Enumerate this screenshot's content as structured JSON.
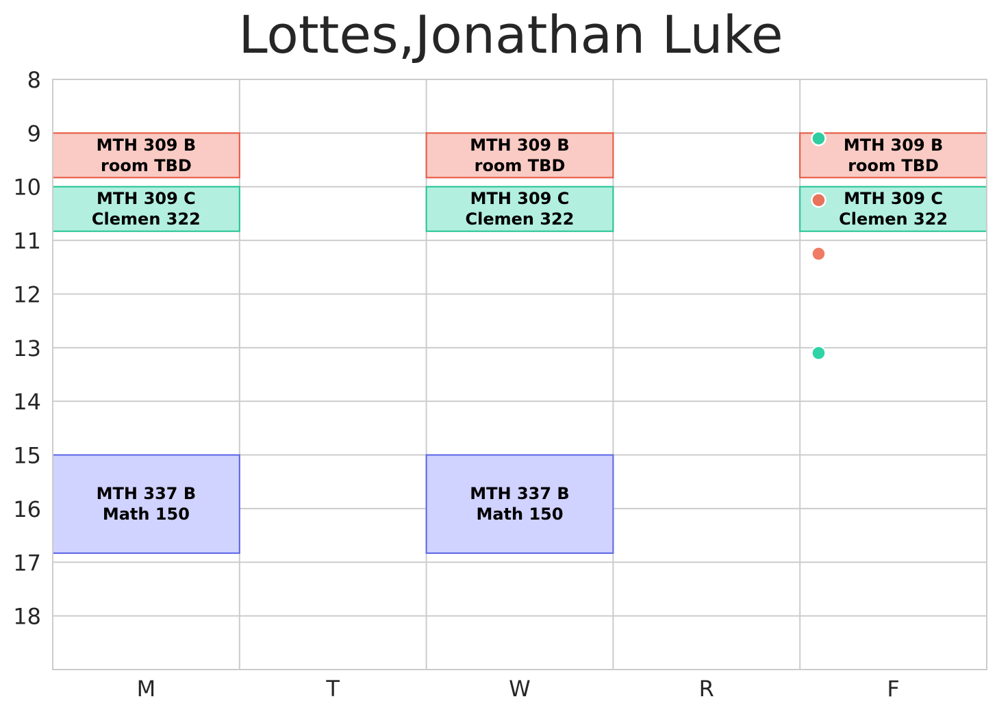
{
  "chart_data": {
    "type": "schedule",
    "title": "Lottes,Jonathan Luke",
    "days": [
      "M",
      "T",
      "W",
      "R",
      "F"
    ],
    "hours": [
      8,
      9,
      10,
      11,
      12,
      13,
      14,
      15,
      16,
      17,
      18
    ],
    "ylim": [
      8,
      19
    ],
    "grid": true,
    "courses": [
      {
        "day": "M",
        "start": 9.0,
        "end": 9.83,
        "line1": "MTH 309 B",
        "line2": "room TBD",
        "fill": "#f9cbc4",
        "stroke": "#e8553e"
      },
      {
        "day": "W",
        "start": 9.0,
        "end": 9.83,
        "line1": "MTH 309 B",
        "line2": "room TBD",
        "fill": "#f9cbc4",
        "stroke": "#e8553e"
      },
      {
        "day": "F",
        "start": 9.0,
        "end": 9.83,
        "line1": "MTH 309 B",
        "line2": "room TBD",
        "fill": "#f9cbc4",
        "stroke": "#e8553e"
      },
      {
        "day": "M",
        "start": 10.0,
        "end": 10.83,
        "line1": "MTH 309 C",
        "line2": "Clemen 322",
        "fill": "#b2efdf",
        "stroke": "#22c493"
      },
      {
        "day": "W",
        "start": 10.0,
        "end": 10.83,
        "line1": "MTH 309 C",
        "line2": "Clemen 322",
        "fill": "#b2efdf",
        "stroke": "#22c493"
      },
      {
        "day": "F",
        "start": 10.0,
        "end": 10.83,
        "line1": "MTH 309 C",
        "line2": "Clemen 322",
        "fill": "#b2efdf",
        "stroke": "#22c493"
      },
      {
        "day": "M",
        "start": 15.0,
        "end": 16.83,
        "line1": "MTH 337 B",
        "line2": "Math 150",
        "fill": "#d0d2ff",
        "stroke": "#5a64e6"
      },
      {
        "day": "W",
        "start": 15.0,
        "end": 16.83,
        "line1": "MTH 337 B",
        "line2": "Math 150",
        "fill": "#d0d2ff",
        "stroke": "#5a64e6"
      }
    ],
    "markers": [
      {
        "day": "F",
        "offset": 0.1,
        "time": 9.1,
        "color": "#2ecc9f"
      },
      {
        "day": "F",
        "offset": 0.1,
        "time": 10.25,
        "color": "#e8735a"
      },
      {
        "day": "F",
        "offset": 0.1,
        "time": 11.25,
        "color": "#f07a65"
      },
      {
        "day": "F",
        "offset": 0.1,
        "time": 13.1,
        "color": "#2ed3a6"
      }
    ]
  }
}
